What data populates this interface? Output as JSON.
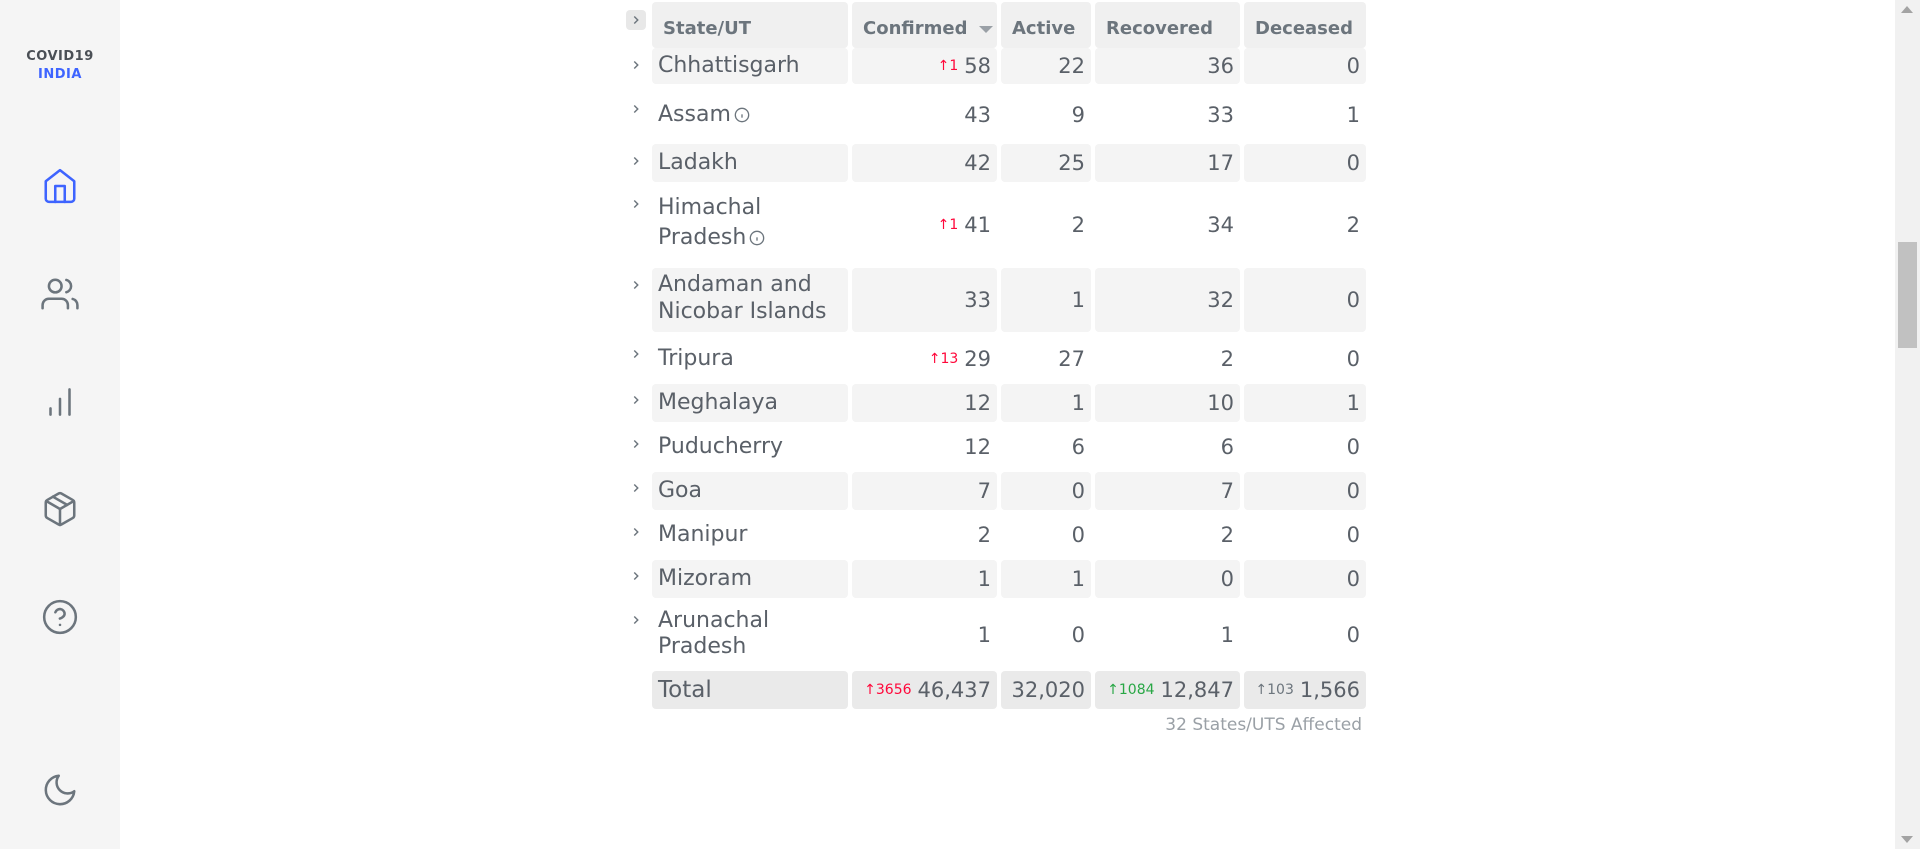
{
  "sidebar": {
    "logo_line1": "COVID19",
    "logo_line2": "INDIA",
    "icons": [
      "home-icon",
      "users-icon",
      "bar-chart-icon",
      "package-icon",
      "help-icon",
      "moon-icon"
    ],
    "accent_color": "#3e64ff"
  },
  "table": {
    "headers": {
      "state": "State/UT",
      "confirmed": "Confirmed",
      "active": "Active",
      "recovered": "Recovered",
      "deceased": "Deceased"
    },
    "rows": [
      {
        "state": "Chhattisgarh",
        "confirmed_delta": "1",
        "confirmed": "58",
        "active": "22",
        "recovered": "36",
        "deceased": "0"
      },
      {
        "state": "Assam",
        "confirmed": "43",
        "active": "9",
        "recovered": "33",
        "deceased": "1"
      },
      {
        "state": "Ladakh",
        "confirmed": "42",
        "active": "25",
        "recovered": "17",
        "deceased": "0"
      },
      {
        "state_line1": "Himachal",
        "state_line2": "Pradesh",
        "confirmed_delta": "1",
        "confirmed": "41",
        "active": "2",
        "recovered": "34",
        "deceased": "2"
      },
      {
        "state_line1": "Andaman and",
        "state_line2": "Nicobar Islands",
        "confirmed": "33",
        "active": "1",
        "recovered": "32",
        "deceased": "0"
      },
      {
        "state": "Tripura",
        "confirmed_delta": "13",
        "confirmed": "29",
        "active": "27",
        "recovered": "2",
        "deceased": "0"
      },
      {
        "state": "Meghalaya",
        "confirmed": "12",
        "active": "1",
        "recovered": "10",
        "deceased": "1"
      },
      {
        "state": "Puducherry",
        "confirmed": "12",
        "active": "6",
        "recovered": "6",
        "deceased": "0"
      },
      {
        "state": "Goa",
        "confirmed": "7",
        "active": "0",
        "recovered": "7",
        "deceased": "0"
      },
      {
        "state": "Manipur",
        "confirmed": "2",
        "active": "0",
        "recovered": "2",
        "deceased": "0"
      },
      {
        "state": "Mizoram",
        "confirmed": "1",
        "active": "1",
        "recovered": "0",
        "deceased": "0"
      },
      {
        "state_line1": "Arunachal",
        "state_line2": "Pradesh",
        "confirmed": "1",
        "active": "0",
        "recovered": "1",
        "deceased": "0"
      }
    ],
    "total": {
      "label": "Total",
      "confirmed_delta": "3656",
      "confirmed": "46,437",
      "active": "32,020",
      "recovered_delta": "1084",
      "recovered": "12,847",
      "deceased_delta": "103",
      "deceased": "1,566"
    },
    "footnote": "32 States/UTS Affected"
  },
  "colors": {
    "confirmed_delta": "#ff073a",
    "recovered_delta": "#28a745",
    "deceased_delta": "#6c757d"
  }
}
